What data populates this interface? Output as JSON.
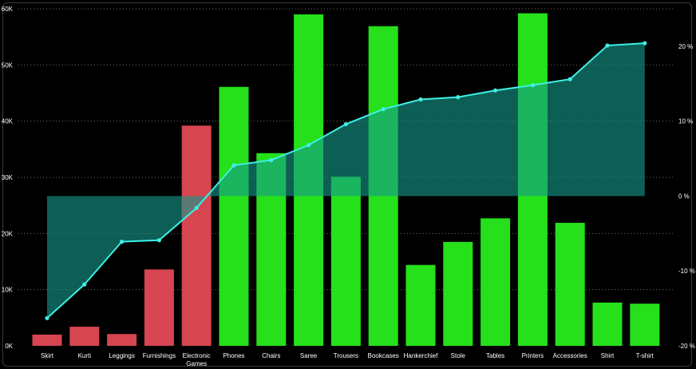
{
  "chart_data": {
    "type": "bar",
    "categories": [
      "Skirt",
      "Kurti",
      "Leggings",
      "Furnishings",
      "Electronic Games",
      "Phones",
      "Chairs",
      "Saree",
      "Trousers",
      "Bookcases",
      "Hankerchief",
      "Stole",
      "Tables",
      "Printers",
      "Accessories",
      "Shirt",
      "T-shirt"
    ],
    "category_lines": [
      [
        "Skirt"
      ],
      [
        "Kurti"
      ],
      [
        "Leggings"
      ],
      [
        "Furnishings"
      ],
      [
        "Electronic",
        "Games"
      ],
      [
        "Phones"
      ],
      [
        "Chairs"
      ],
      [
        "Saree"
      ],
      [
        "Trousers"
      ],
      [
        "Bookcases"
      ],
      [
        "Hankerchief"
      ],
      [
        "Stole"
      ],
      [
        "Tables"
      ],
      [
        "Printers"
      ],
      [
        "Accessories"
      ],
      [
        "Shirt"
      ],
      [
        "T-shirt"
      ]
    ],
    "bar_values": [
      2000,
      3400,
      2100,
      13600,
      39200,
      46100,
      34300,
      59000,
      30100,
      56900,
      14400,
      18500,
      22700,
      59200,
      21900,
      7700,
      7500
    ],
    "bar_colors": [
      "#d64550",
      "#d64550",
      "#d64550",
      "#d64550",
      "#d64550",
      "#25e01a",
      "#25e01a",
      "#25e01a",
      "#25e01a",
      "#25e01a",
      "#25e01a",
      "#25e01a",
      "#25e01a",
      "#25e01a",
      "#25e01a",
      "#25e01a",
      "#25e01a"
    ],
    "line_values_pct": [
      -16.3,
      -11.8,
      -6.1,
      -5.9,
      -1.6,
      4.1,
      4.8,
      6.8,
      9.6,
      11.6,
      12.9,
      13.2,
      14.1,
      14.8,
      15.6,
      20.1,
      20.4
    ],
    "left_axis": {
      "min": 0,
      "max": 60000,
      "ticks": [
        0,
        10000,
        20000,
        30000,
        40000,
        50000,
        60000
      ],
      "tick_labels": [
        "0K",
        "10K",
        "20K",
        "30K",
        "40K",
        "50K",
        "60K"
      ]
    },
    "right_axis": {
      "min": -20,
      "max": 25,
      "ticks": [
        -20,
        -10,
        0,
        10,
        20
      ],
      "tick_labels": [
        "-20 %",
        "-10 %",
        "0 %",
        "10 %",
        "20 %"
      ]
    },
    "colors": {
      "negative": "#d64550",
      "positive": "#25e01a",
      "line": "#3ef0e6",
      "area": "#159a8a",
      "grid": "#6b6b6b",
      "background": "#000000"
    },
    "grid": true
  }
}
